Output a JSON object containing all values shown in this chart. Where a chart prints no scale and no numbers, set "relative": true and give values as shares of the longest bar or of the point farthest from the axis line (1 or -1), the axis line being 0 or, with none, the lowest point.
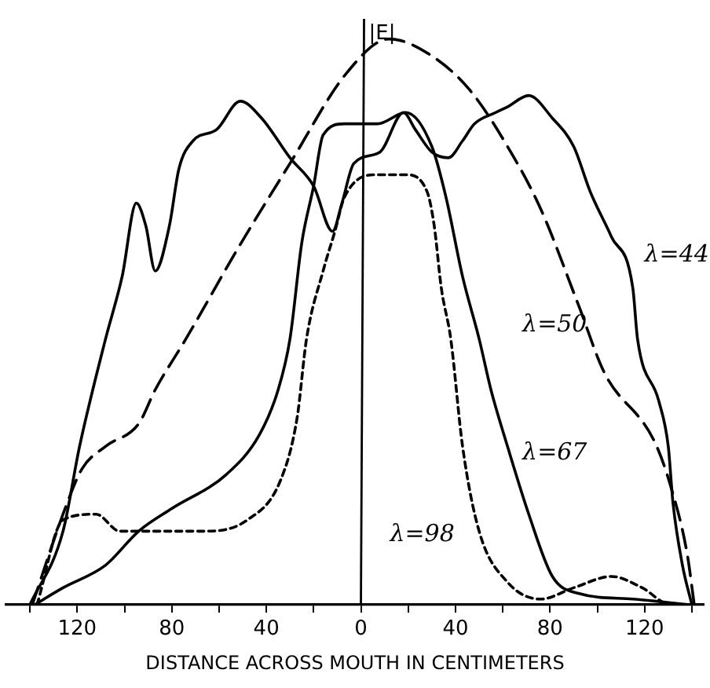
{
  "chart_data": {
    "type": "line",
    "xlabel": "DISTANCE ACROSS MOUTH IN CENTIMETERS",
    "ylabel": "|E|",
    "relative": true,
    "grid": false,
    "legend": false,
    "marker": "none",
    "xlim": [
      -150,
      145
    ],
    "xticks": [
      {
        "value": -140,
        "label": null
      },
      {
        "value": -120,
        "label": "120"
      },
      {
        "value": -100,
        "label": null
      },
      {
        "value": -80,
        "label": "80"
      },
      {
        "value": -60,
        "label": null
      },
      {
        "value": -40,
        "label": "40"
      },
      {
        "value": -20,
        "label": null
      },
      0,
      {
        "value": 20,
        "label": null
      },
      40,
      {
        "value": 60,
        "label": null
      },
      80,
      {
        "value": 100,
        "label": null
      },
      120,
      {
        "value": 140,
        "label": null
      }
    ],
    "series": [
      {
        "name": "λ=44",
        "color": "#000000",
        "line_style": "solid",
        "x": [
          -140,
          -126,
          -119,
          -108,
          -101,
          -95,
          -91,
          -87,
          -81,
          -77,
          -71,
          -61,
          -51,
          -42,
          -30,
          -20,
          -12,
          -8,
          -3,
          8,
          18,
          23,
          30,
          37,
          43,
          48,
          57,
          62,
          71,
          81,
          90,
          97,
          106,
          115,
          117,
          126,
          130,
          132,
          136,
          140
        ],
        "values": [
          0,
          0.13,
          0.28,
          0.47,
          0.58,
          0.71,
          0.67,
          0.59,
          0.67,
          0.77,
          0.82,
          0.84,
          0.89,
          0.86,
          0.79,
          0.74,
          0.66,
          0.71,
          0.78,
          0.8,
          0.87,
          0.84,
          0.8,
          0.79,
          0.82,
          0.85,
          0.87,
          0.88,
          0.9,
          0.86,
          0.81,
          0.73,
          0.65,
          0.56,
          0.47,
          0.36,
          0.28,
          0.18,
          0.07,
          0
        ]
      },
      {
        "name": "λ=50",
        "color": "#000000",
        "line_style": "dashed",
        "x": [
          -139,
          -126,
          -118,
          -108,
          -94,
          -87,
          -74,
          -52,
          -30,
          -6,
          12,
          30,
          46,
          62,
          76,
          92,
          103,
          124,
          131,
          138,
          141
        ],
        "values": [
          0,
          0.16,
          0.24,
          0.28,
          0.32,
          0.38,
          0.47,
          0.63,
          0.78,
          0.94,
          1,
          0.97,
          0.91,
          0.81,
          0.7,
          0.53,
          0.41,
          0.29,
          0.21,
          0.09,
          0
        ]
      },
      {
        "name": "λ=67",
        "color": "#000000",
        "line_style": "solid",
        "x": [
          -138,
          -126,
          -108,
          -94,
          -80,
          -57,
          -43,
          -35,
          -30,
          -25,
          -20,
          -16,
          -7,
          7,
          19,
          30,
          36,
          43,
          50,
          55,
          62,
          71,
          81,
          92,
          115,
          139
        ],
        "values": [
          0,
          0.03,
          0.07,
          0.13,
          0.17,
          0.23,
          0.3,
          0.38,
          0.47,
          0.64,
          0.74,
          0.83,
          0.85,
          0.85,
          0.87,
          0.81,
          0.72,
          0.58,
          0.47,
          0.38,
          0.28,
          0.16,
          0.05,
          0.02,
          0.01,
          0
        ]
      },
      {
        "name": "λ=98",
        "color": "#000000",
        "line_style": "dotted",
        "x": [
          -137,
          -126,
          -112,
          -102,
          -87,
          -66,
          -48,
          -34,
          -27,
          -23,
          -16,
          -11,
          -7,
          7,
          19,
          28,
          31,
          34,
          38,
          43,
          50,
          62,
          76,
          90,
          106,
          119,
          131,
          138
        ],
        "values": [
          0,
          0.15,
          0.16,
          0.13,
          0.13,
          0.13,
          0.15,
          0.22,
          0.33,
          0.47,
          0.59,
          0.66,
          0.72,
          0.76,
          0.76,
          0.73,
          0.67,
          0.56,
          0.47,
          0.28,
          0.13,
          0.04,
          0.01,
          0.03,
          0.05,
          0.03,
          0,
          0
        ]
      }
    ]
  }
}
